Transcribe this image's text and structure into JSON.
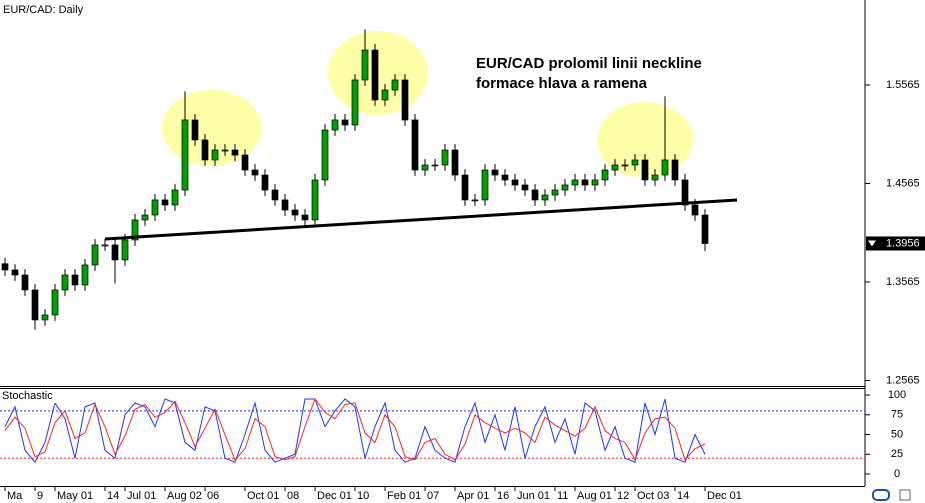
{
  "chart_data": [
    {
      "type": "candlestick",
      "title": "EUR/CAD: Daily",
      "annotation": [
        "EUR/CAD prolomil linii neckline",
        "formace hlava a ramena"
      ],
      "categories": [
        "Ma",
        null,
        null,
        "9",
        null,
        "May 01",
        null,
        null,
        null,
        null,
        "14",
        null,
        "Jul 01",
        null,
        null,
        null,
        "Aug 02",
        null,
        null,
        null,
        "06",
        null,
        null,
        null,
        "Oct 01",
        null,
        null,
        null,
        "08",
        null,
        null,
        "Dec 01",
        null,
        null,
        null,
        "10",
        null,
        null,
        "Feb 01",
        null,
        null,
        null,
        "07",
        null,
        null,
        "Apr 01",
        null,
        null,
        null,
        "16",
        null,
        "Jun 01",
        null,
        null,
        null,
        "11",
        null,
        "Aug 01",
        null,
        null,
        null,
        "12",
        null,
        "Oct 03",
        null,
        null,
        null,
        "14",
        null,
        null,
        "Dec 01"
      ],
      "open": [
        1.375,
        1.3687,
        1.3636,
        1.3484,
        1.318,
        1.323,
        1.3484,
        1.3636,
        1.3535,
        1.3738,
        1.3941,
        1.3941,
        1.3789,
        1.3992,
        1.4195,
        1.4245,
        1.4398,
        1.4347,
        1.4499,
        1.521,
        1.5007,
        1.4804,
        1.4905,
        1.4905,
        1.4854,
        1.4702,
        1.4651,
        1.4499,
        1.4398,
        1.4296,
        1.4245,
        1.4195,
        1.4601,
        1.5108,
        1.521,
        1.5159,
        1.5616,
        1.592,
        1.5413,
        1.5514,
        1.5616,
        1.521,
        1.4702,
        1.4753,
        1.4753,
        1.4905,
        1.4651,
        1.4398,
        1.4398,
        1.4702,
        1.4651,
        1.4601,
        1.455,
        1.4499,
        1.4398,
        1.4448,
        1.4499,
        1.455,
        1.4601,
        1.455,
        1.4601,
        1.4702,
        1.4753,
        1.4753,
        1.4804,
        1.4601,
        1.4651,
        1.4804,
        1.4601,
        1.4347,
        1.4245
      ],
      "high": [
        1.381,
        1.3747,
        1.3696,
        1.3544,
        1.329,
        1.3544,
        1.3696,
        1.3696,
        1.3798,
        1.4001,
        1.4001,
        1.4001,
        1.4052,
        1.4255,
        1.4305,
        1.4458,
        1.4458,
        1.4559,
        1.55,
        1.527,
        1.5067,
        1.4965,
        1.4965,
        1.4965,
        1.4914,
        1.4762,
        1.4711,
        1.4559,
        1.4458,
        1.4356,
        1.4305,
        1.4661,
        1.5168,
        1.527,
        1.527,
        1.5676,
        1.613,
        1.598,
        1.5574,
        1.5676,
        1.5676,
        1.527,
        1.4813,
        1.4813,
        1.4965,
        1.4965,
        1.4711,
        1.4458,
        1.4762,
        1.4762,
        1.4711,
        1.4661,
        1.461,
        1.4559,
        1.4508,
        1.4559,
        1.461,
        1.4661,
        1.4661,
        1.4661,
        1.4762,
        1.4813,
        1.4813,
        1.4864,
        1.4864,
        1.4711,
        1.545,
        1.4864,
        1.4661,
        1.4407,
        1.4305
      ],
      "low": [
        1.3627,
        1.3576,
        1.3424,
        1.308,
        1.312,
        1.317,
        1.3424,
        1.3475,
        1.3475,
        1.3678,
        1.3881,
        1.355,
        1.3729,
        1.3932,
        1.4135,
        1.4185,
        1.4287,
        1.4287,
        1.4439,
        1.4947,
        1.4744,
        1.4744,
        1.4845,
        1.4794,
        1.4642,
        1.4591,
        1.4439,
        1.4338,
        1.4236,
        1.4185,
        1.4135,
        1.4135,
        1.4541,
        1.5048,
        1.5099,
        1.5099,
        1.5556,
        1.5353,
        1.5353,
        1.5454,
        1.515,
        1.4642,
        1.4642,
        1.4693,
        1.4693,
        1.4591,
        1.4338,
        1.4338,
        1.4338,
        1.4591,
        1.4541,
        1.449,
        1.4439,
        1.4338,
        1.4338,
        1.4388,
        1.4439,
        1.449,
        1.449,
        1.449,
        1.4541,
        1.4642,
        1.4693,
        1.4693,
        1.4541,
        1.4541,
        1.4591,
        1.4541,
        1.4287,
        1.4185,
        1.388
      ],
      "close": [
        1.3687,
        1.3636,
        1.3484,
        1.318,
        1.323,
        1.3484,
        1.3636,
        1.3535,
        1.3738,
        1.3941,
        1.3941,
        1.3789,
        1.3992,
        1.4195,
        1.4245,
        1.4398,
        1.4347,
        1.4499,
        1.521,
        1.5007,
        1.4804,
        1.4905,
        1.4905,
        1.4854,
        1.4702,
        1.4651,
        1.4499,
        1.4398,
        1.4296,
        1.4245,
        1.4195,
        1.4601,
        1.5108,
        1.521,
        1.5159,
        1.5616,
        1.592,
        1.5413,
        1.5514,
        1.5616,
        1.521,
        1.4702,
        1.4753,
        1.4753,
        1.4905,
        1.4651,
        1.4398,
        1.4398,
        1.4702,
        1.4651,
        1.4601,
        1.455,
        1.4499,
        1.4398,
        1.4448,
        1.4499,
        1.455,
        1.4601,
        1.455,
        1.4601,
        1.4702,
        1.4753,
        1.4753,
        1.4804,
        1.4601,
        1.4651,
        1.4804,
        1.4601,
        1.4347,
        1.4245,
        1.3956
      ],
      "up_color": "#00a000",
      "down_color": "#000000",
      "ylim": [
        1.2509,
        1.6428
      ],
      "yticks": [
        1.5565,
        1.4565,
        1.3565,
        1.2565
      ],
      "last_price": 1.3956
    },
    {
      "type": "line",
      "title": "Stochastic",
      "series": [
        {
          "color": "#2233ff",
          "values": [
            60,
            85,
            30,
            15,
            40,
            90,
            70,
            20,
            85,
            90,
            30,
            20,
            75,
            90,
            85,
            60,
            95,
            90,
            40,
            30,
            85,
            80,
            20,
            15,
            50,
            90,
            30,
            15,
            20,
            25,
            95,
            95,
            60,
            80,
            95,
            85,
            20,
            60,
            90,
            30,
            15,
            20,
            60,
            30,
            20,
            15,
            60,
            90,
            40,
            75,
            30,
            85,
            20,
            60,
            85,
            40,
            70,
            25,
            90,
            80,
            30,
            60,
            20,
            15,
            90,
            50,
            95,
            20,
            15,
            50,
            25
          ]
        },
        {
          "color": "#ff2222",
          "values": [
            55,
            72,
            58,
            22,
            28,
            65,
            80,
            45,
            52,
            88,
            60,
            25,
            48,
            82,
            88,
            72,
            78,
            92,
            65,
            35,
            58,
            82,
            50,
            18,
            32,
            70,
            60,
            22,
            18,
            22,
            60,
            95,
            78,
            70,
            88,
            90,
            52,
            40,
            75,
            60,
            22,
            18,
            40,
            45,
            25,
            18,
            38,
            75,
            65,
            58,
            52,
            58,
            52,
            40,
            72,
            62,
            55,
            48,
            58,
            85,
            55,
            45,
            40,
            18,
            52,
            70,
            72,
            58,
            18,
            32,
            38
          ]
        }
      ],
      "levels": [
        {
          "value": 80,
          "color": "#2233ff"
        },
        {
          "value": 20,
          "color": "#ff2222"
        }
      ],
      "ylim": [
        -13.9,
        108.9
      ],
      "yticks": [
        0,
        25,
        50,
        75,
        100
      ]
    }
  ]
}
